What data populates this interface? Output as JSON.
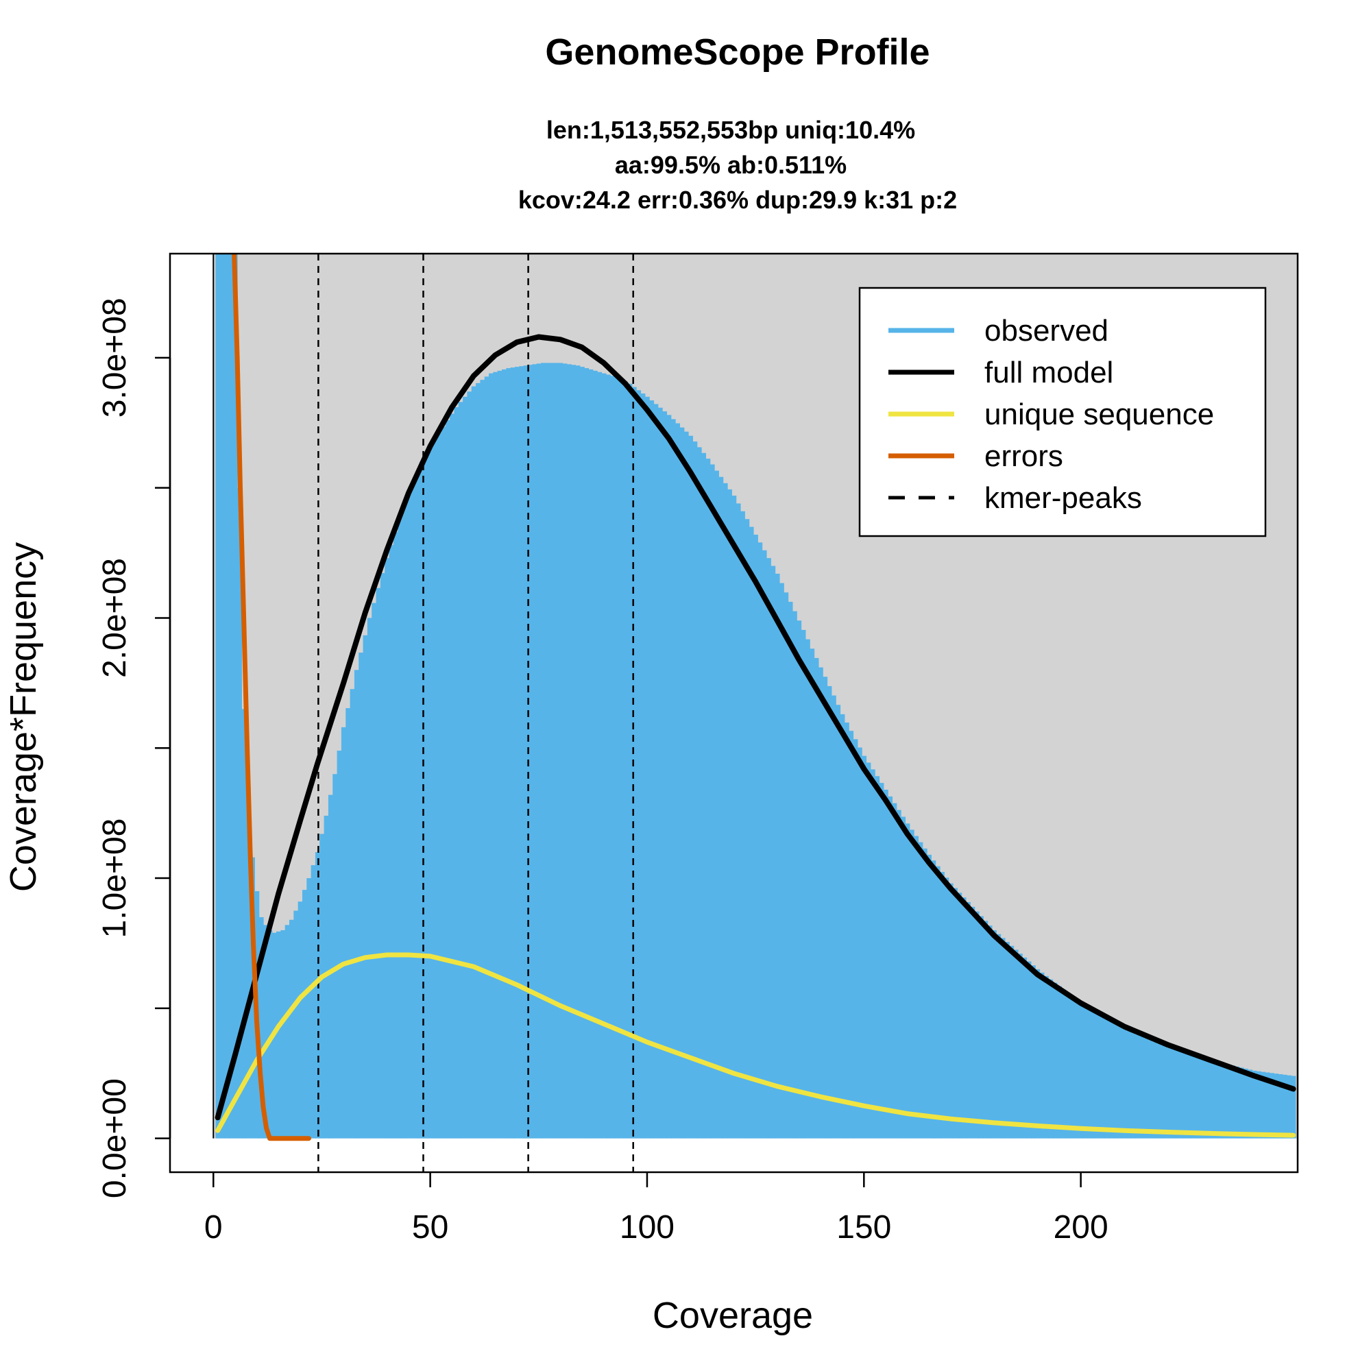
{
  "chart_data": {
    "type": "area",
    "title": "GenomeScope Profile",
    "subtitle_lines": [
      "len:1,513,552,553bp uniq:10.4%",
      "aa:99.5% ab:0.511%",
      "kcov:24.2 err:0.36%  dup:29.9  k:31 p:2"
    ],
    "xlabel": "Coverage",
    "ylabel": "Coverage*Frequency",
    "xlim": [
      -10,
      250
    ],
    "ylim": [
      -13000000,
      340000000
    ],
    "x_ticks": [
      0,
      50,
      100,
      150,
      200
    ],
    "x_tick_labels": [
      "0",
      "50",
      "100",
      "150",
      "200"
    ],
    "y_ticks": [
      0,
      50000000,
      100000000,
      150000000,
      200000000,
      250000000,
      300000000
    ],
    "y_tick_labels": [
      "0.0e+00",
      "",
      "1.0e+08",
      "",
      "2.0e+08",
      "",
      "3.0e+08"
    ],
    "kmer_peaks": [
      24.2,
      48.4,
      72.6,
      96.8
    ],
    "colors": {
      "observed": "#56B4E9",
      "full_model": "#000000",
      "unique_sequence": "#F0E442",
      "errors": "#D55E00",
      "kmer_peaks": "#000000",
      "plot_background": "#D3D3D3"
    },
    "legend": {
      "position": "top-right",
      "items": [
        {
          "label": "observed",
          "color": "#56B4E9",
          "style": "solid"
        },
        {
          "label": "full model",
          "color": "#000000",
          "style": "solid"
        },
        {
          "label": "unique sequence",
          "color": "#F0E442",
          "style": "solid"
        },
        {
          "label": "errors",
          "color": "#D55E00",
          "style": "solid"
        },
        {
          "label": "kmer-peaks",
          "color": "#000000",
          "style": "dashed"
        }
      ]
    },
    "series": [
      {
        "name": "observed",
        "style": "bars",
        "x": [
          1,
          2,
          3,
          4,
          5,
          6,
          7,
          8,
          9,
          10,
          11,
          12,
          13,
          14,
          16,
          18,
          20,
          22,
          24,
          26,
          28,
          30,
          33,
          36,
          40,
          44,
          48,
          52,
          56,
          60,
          64,
          68,
          72,
          76,
          80,
          84,
          88,
          92,
          96,
          100,
          105,
          110,
          115,
          120,
          125,
          130,
          135,
          140,
          145,
          150,
          155,
          160,
          165,
          170,
          175,
          180,
          190,
          200,
          210,
          220,
          230,
          240,
          249
        ],
        "y": [
          340000000,
          340000000,
          340000000,
          340000000,
          340000000,
          250000000,
          165000000,
          135000000,
          108000000,
          95000000,
          85000000,
          82000000,
          80000000,
          79000000,
          80000000,
          84000000,
          91000000,
          100000000,
          110000000,
          124000000,
          140000000,
          158000000,
          180000000,
          200000000,
          223000000,
          243000000,
          260000000,
          271000000,
          281000000,
          289000000,
          294000000,
          296000000,
          297000000,
          298000000,
          298000000,
          297000000,
          295000000,
          293000000,
          290000000,
          285000000,
          278000000,
          270000000,
          259000000,
          247000000,
          232000000,
          217000000,
          199000000,
          181000000,
          163000000,
          147000000,
          134000000,
          121000000,
          109000000,
          98000000,
          89000000,
          80000000,
          65000000,
          52000000,
          42000000,
          35000000,
          30000000,
          26000000,
          24000000
        ]
      },
      {
        "name": "full model",
        "style": "line",
        "x": [
          1,
          5,
          10,
          15,
          20,
          24,
          30,
          35,
          40,
          45,
          50,
          55,
          60,
          65,
          70,
          75,
          80,
          85,
          90,
          95,
          100,
          105,
          110,
          115,
          120,
          125,
          130,
          135,
          140,
          145,
          150,
          155,
          160,
          165,
          170,
          175,
          180,
          190,
          200,
          210,
          220,
          230,
          240,
          249
        ],
        "y": [
          8000000,
          32000000,
          63000000,
          94000000,
          122000000,
          144000000,
          175000000,
          202000000,
          226000000,
          248000000,
          266000000,
          281000000,
          293000000,
          301000000,
          306000000,
          308000000,
          307000000,
          304000000,
          298000000,
          290000000,
          280000000,
          269000000,
          256000000,
          242000000,
          228000000,
          214000000,
          199000000,
          184000000,
          170000000,
          156000000,
          142000000,
          130000000,
          117000000,
          106000000,
          96000000,
          87000000,
          78000000,
          63000000,
          52000000,
          43000000,
          36000000,
          30000000,
          24000000,
          19000000
        ]
      },
      {
        "name": "unique sequence",
        "style": "line",
        "x": [
          1,
          5,
          10,
          15,
          20,
          25,
          30,
          35,
          40,
          45,
          50,
          60,
          70,
          80,
          90,
          100,
          110,
          120,
          130,
          140,
          150,
          160,
          170,
          180,
          190,
          200,
          210,
          220,
          230,
          240,
          249
        ],
        "y": [
          3000000,
          15000000,
          30000000,
          43000000,
          54000000,
          62000000,
          67000000,
          69500000,
          70500000,
          70500000,
          70000000,
          66000000,
          59000000,
          51000000,
          44000000,
          37000000,
          31000000,
          25000000,
          20000000,
          16000000,
          12500000,
          9500000,
          7500000,
          6000000,
          4800000,
          3800000,
          3000000,
          2400000,
          1900000,
          1500000,
          1200000
        ]
      },
      {
        "name": "errors",
        "style": "line",
        "x": [
          4.8,
          5.5,
          6.2,
          7,
          7.8,
          8.5,
          9.2,
          10,
          10.8,
          11.5,
          12.2,
          13,
          16,
          19,
          22
        ],
        "y": [
          340000000,
          300000000,
          250000000,
          200000000,
          150000000,
          110000000,
          75000000,
          45000000,
          25000000,
          12000000,
          4000000,
          0,
          0,
          0,
          0
        ]
      }
    ]
  }
}
